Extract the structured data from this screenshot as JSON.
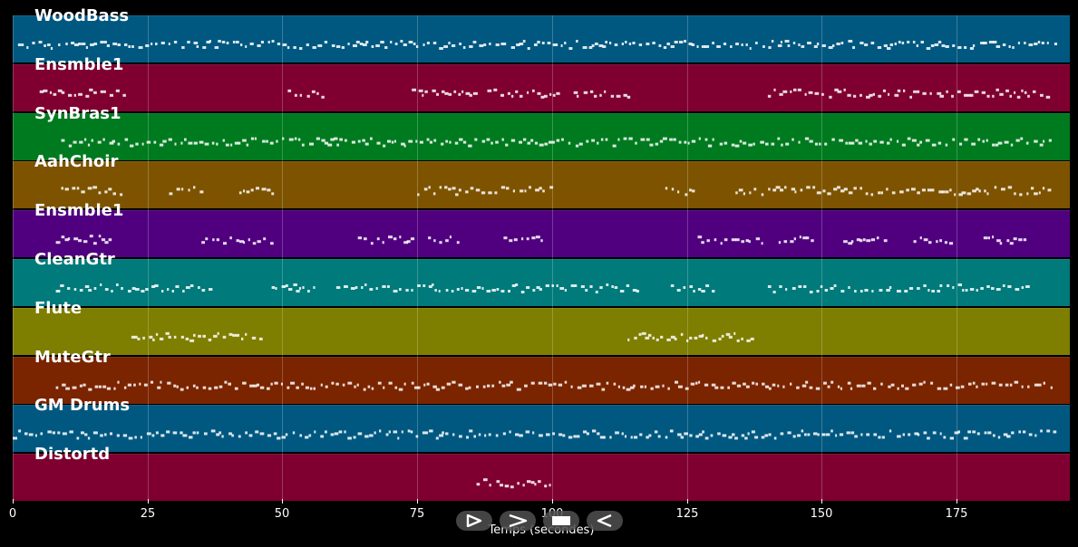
{
  "tracks": [
    {
      "name": "WoodBass",
      "color": "#005880"
    },
    {
      "name": "Ensmble1",
      "color": "#7f0030"
    },
    {
      "name": "SynBras1",
      "color": "#007a1f"
    },
    {
      "name": "AahChoir",
      "color": "#7d5300"
    },
    {
      "name": "Ensmble1",
      "color": "#50007f"
    },
    {
      "name": "CleanGtr",
      "color": "#007a7a"
    },
    {
      "name": "Flute",
      "color": "#7e7e00"
    },
    {
      "name": "MuteGtr",
      "color": "#7a2400"
    },
    {
      "name": "GM Drums",
      "color": "#005880"
    },
    {
      "name": "Distortd",
      "color": "#7f0030"
    }
  ],
  "axis": {
    "title": "Temps (secondes)",
    "ticks": [
      "0",
      "25",
      "50",
      "75",
      "100",
      "125",
      "150",
      "175"
    ],
    "tick_values": [
      0,
      25,
      50,
      75,
      100,
      125,
      150,
      175
    ],
    "range": [
      0,
      196
    ]
  },
  "controls": [
    {
      "name": "play-icon"
    },
    {
      "name": "fast-forward-icon"
    },
    {
      "name": "stop-icon"
    },
    {
      "name": "rewind-icon"
    }
  ],
  "note_segments": [
    [
      [
        1,
        194
      ]
    ],
    [
      [
        5,
        21
      ],
      [
        51,
        58
      ],
      [
        74,
        86
      ],
      [
        88,
        101
      ],
      [
        104,
        114
      ],
      [
        140,
        192
      ]
    ],
    [
      [
        9,
        193
      ]
    ],
    [
      [
        9,
        21
      ],
      [
        29,
        35
      ],
      [
        42,
        48
      ],
      [
        75,
        100
      ],
      [
        121,
        126
      ],
      [
        134,
        192
      ]
    ],
    [
      [
        8,
        18
      ],
      [
        35,
        48
      ],
      [
        64,
        74
      ],
      [
        77,
        83
      ],
      [
        91,
        98
      ],
      [
        127,
        139
      ],
      [
        142,
        148
      ],
      [
        154,
        162
      ],
      [
        167,
        174
      ],
      [
        180,
        188
      ]
    ],
    [
      [
        8,
        37
      ],
      [
        48,
        57
      ],
      [
        60,
        74
      ],
      [
        75,
        116
      ],
      [
        122,
        130
      ],
      [
        140,
        188
      ]
    ],
    [
      [
        22,
        46
      ],
      [
        114,
        138
      ]
    ],
    [
      [
        8,
        193
      ]
    ],
    [
      [
        0,
        193
      ]
    ],
    [
      [
        86,
        100
      ]
    ]
  ]
}
